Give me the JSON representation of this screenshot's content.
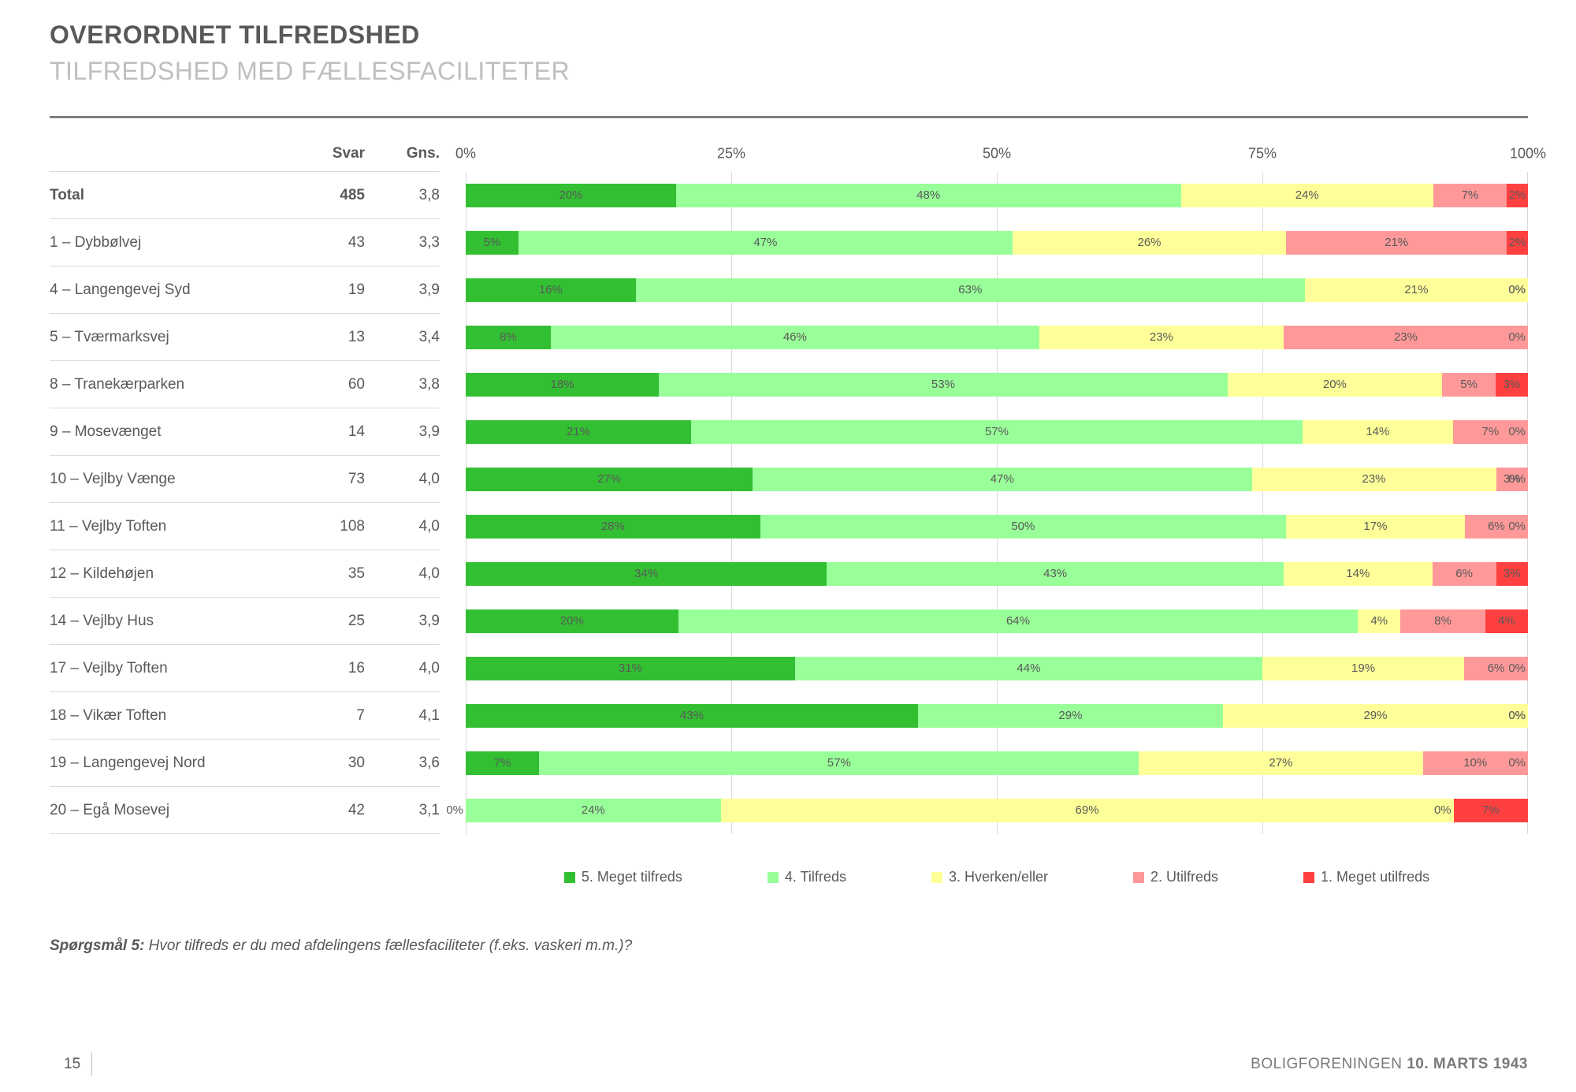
{
  "header": {
    "title": "OVERORDNET TILFREDSHED",
    "subtitle": "TILFREDSHED MED FÆLLESFACILITETER"
  },
  "table_headers": {
    "svar": "Svar",
    "gns": "Gns."
  },
  "chart_data": {
    "type": "bar",
    "orientation": "horizontal",
    "stacked": true,
    "xlim": [
      0,
      100
    ],
    "x_ticks": [
      "0%",
      "25%",
      "50%",
      "75%",
      "100%"
    ],
    "grid": true,
    "legend_position": "bottom",
    "series": [
      {
        "name": "5. Meget tilfreds",
        "color": "#32c032"
      },
      {
        "name": "4. Tilfreds",
        "color": "#99ff99"
      },
      {
        "name": "3. Hverken/eller",
        "color": "#ffff99"
      },
      {
        "name": "2. Utilfreds",
        "color": "#ff9999"
      },
      {
        "name": "1. Meget utilfreds",
        "color": "#ff4040"
      }
    ],
    "rows": [
      {
        "label": "Total",
        "svar": "485",
        "gns": "3,8",
        "values": [
          20,
          48,
          24,
          7,
          2
        ],
        "bold": true
      },
      {
        "label": "1 – Dybbølvej",
        "svar": "43",
        "gns": "3,3",
        "values": [
          5,
          47,
          26,
          21,
          2
        ]
      },
      {
        "label": "4 – Langengevej Syd",
        "svar": "19",
        "gns": "3,9",
        "values": [
          16,
          63,
          21,
          0,
          0
        ]
      },
      {
        "label": "5 – Tværmarksvej",
        "svar": "13",
        "gns": "3,4",
        "values": [
          8,
          46,
          23,
          23,
          0
        ]
      },
      {
        "label": "8 – Tranekærparken",
        "svar": "60",
        "gns": "3,8",
        "values": [
          18,
          53,
          20,
          5,
          3
        ]
      },
      {
        "label": "9 – Mosevænget",
        "svar": "14",
        "gns": "3,9",
        "values": [
          21,
          57,
          14,
          7,
          0
        ]
      },
      {
        "label": "10 – Vejlby Vænge",
        "svar": "73",
        "gns": "4,0",
        "values": [
          27,
          47,
          23,
          3,
          0
        ]
      },
      {
        "label": "11 – Vejlby Toften",
        "svar": "108",
        "gns": "4,0",
        "values": [
          28,
          50,
          17,
          6,
          0
        ]
      },
      {
        "label": "12 – Kildehøjen",
        "svar": "35",
        "gns": "4,0",
        "values": [
          34,
          43,
          14,
          6,
          3
        ]
      },
      {
        "label": "14 – Vejlby Hus",
        "svar": "25",
        "gns": "3,9",
        "values": [
          20,
          64,
          4,
          8,
          4
        ]
      },
      {
        "label": "17 – Vejlby Toften",
        "svar": "16",
        "gns": "4,0",
        "values": [
          31,
          44,
          19,
          6,
          0
        ]
      },
      {
        "label": "18 – Vikær Toften",
        "svar": "7",
        "gns": "4,1",
        "values": [
          43,
          29,
          29,
          0,
          0
        ]
      },
      {
        "label": "19 – Langengevej Nord",
        "svar": "30",
        "gns": "3,6",
        "values": [
          7,
          57,
          27,
          10,
          0
        ]
      },
      {
        "label": "20 – Egå Mosevej",
        "svar": "42",
        "gns": "3,1",
        "values": [
          0,
          24,
          69,
          0,
          7
        ]
      }
    ]
  },
  "question": {
    "prefix": "Spørgsmål 5:",
    "text": " Hvor tilfreds er du med afdelingens fællesfaciliteter (f.eks. vaskeri m.m.)?"
  },
  "footer": {
    "page_number": "15",
    "org": "BOLIGFORENINGEN ",
    "date": "10. MARTS 1943"
  }
}
